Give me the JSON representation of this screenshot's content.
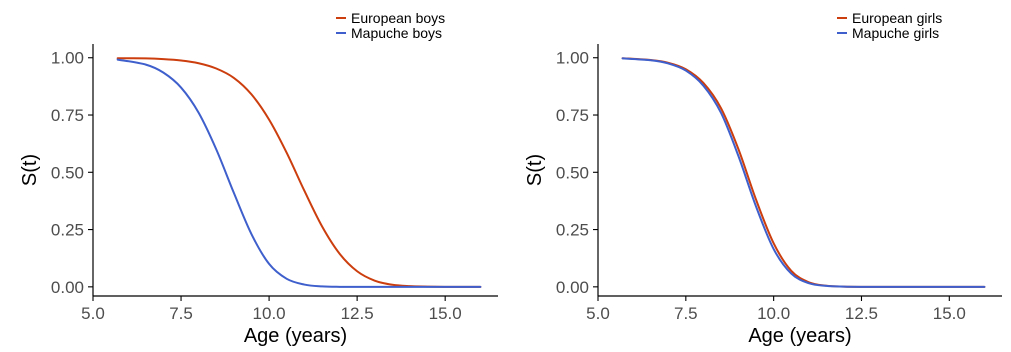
{
  "colors": {
    "european": "#cc3e0e",
    "mapuche": "#3e5fcc",
    "axis": "#000000",
    "tick_text": "#4d4d4d"
  },
  "chart_data": [
    {
      "type": "line",
      "title": "",
      "xlabel": "Age (years)",
      "ylabel": "S(t)",
      "xlim": [
        5.0,
        16.5
      ],
      "ylim": [
        -0.04,
        1.06
      ],
      "x_ticks": [
        5.0,
        7.5,
        10.0,
        12.5,
        15.0
      ],
      "x_tick_labels": [
        "5.0",
        "7.5",
        "10.0",
        "12.5",
        "15.0"
      ],
      "y_ticks": [
        0.0,
        0.25,
        0.5,
        0.75,
        1.0
      ],
      "y_tick_labels": [
        "0.00",
        "0.25",
        "0.50",
        "0.75",
        "1.00"
      ],
      "grid": false,
      "legend_position": "top-right",
      "series": [
        {
          "name": "European boys",
          "color": "#cc3e0e",
          "x": [
            5.7,
            6.5,
            7.0,
            7.5,
            8.0,
            8.5,
            9.0,
            9.5,
            10.0,
            10.5,
            11.0,
            11.5,
            12.0,
            12.5,
            13.0,
            13.5,
            14.0,
            14.5,
            15.0,
            15.5,
            16.0
          ],
          "y": [
            0.998,
            0.997,
            0.994,
            0.988,
            0.976,
            0.953,
            0.912,
            0.84,
            0.73,
            0.585,
            0.42,
            0.265,
            0.145,
            0.068,
            0.027,
            0.009,
            0.003,
            0.001,
            0.0,
            0.0,
            0.0
          ]
        },
        {
          "name": "Mapuche boys",
          "color": "#3e5fcc",
          "x": [
            5.7,
            6.5,
            7.0,
            7.5,
            8.0,
            8.5,
            9.0,
            9.5,
            10.0,
            10.5,
            11.0,
            11.5,
            12.0,
            12.5,
            13.0,
            13.5,
            14.0,
            14.5,
            15.0,
            15.5,
            16.0
          ],
          "y": [
            0.992,
            0.97,
            0.935,
            0.87,
            0.76,
            0.6,
            0.41,
            0.23,
            0.1,
            0.035,
            0.01,
            0.002,
            0.0,
            0.0,
            0.0,
            0.0,
            0.0,
            0.0,
            0.0,
            0.0,
            0.0
          ]
        }
      ]
    },
    {
      "type": "line",
      "title": "",
      "xlabel": "Age (years)",
      "ylabel": "S(t)",
      "xlim": [
        5.0,
        16.5
      ],
      "ylim": [
        -0.04,
        1.06
      ],
      "x_ticks": [
        5.0,
        7.5,
        10.0,
        12.5,
        15.0
      ],
      "x_tick_labels": [
        "5.0",
        "7.5",
        "10.0",
        "12.5",
        "15.0"
      ],
      "y_ticks": [
        0.0,
        0.25,
        0.5,
        0.75,
        1.0
      ],
      "y_tick_labels": [
        "0.00",
        "0.25",
        "0.50",
        "0.75",
        "1.00"
      ],
      "grid": false,
      "legend_position": "top-right",
      "series": [
        {
          "name": "European girls",
          "color": "#cc3e0e",
          "x": [
            5.7,
            6.5,
            7.0,
            7.5,
            8.0,
            8.5,
            9.0,
            9.5,
            10.0,
            10.5,
            11.0,
            11.5,
            12.0,
            12.5,
            13.0,
            13.5,
            14.0,
            14.5,
            15.0,
            15.5,
            16.0
          ],
          "y": [
            0.998,
            0.99,
            0.978,
            0.95,
            0.89,
            0.78,
            0.6,
            0.38,
            0.19,
            0.07,
            0.02,
            0.005,
            0.001,
            0.0,
            0.0,
            0.0,
            0.0,
            0.0,
            0.0,
            0.0,
            0.0
          ]
        },
        {
          "name": "Mapuche girls",
          "color": "#3e5fcc",
          "x": [
            5.7,
            6.5,
            7.0,
            7.5,
            8.0,
            8.5,
            9.0,
            9.5,
            10.0,
            10.5,
            11.0,
            11.5,
            12.0,
            12.5,
            13.0,
            13.5,
            14.0,
            14.5,
            15.0,
            15.5,
            16.0
          ],
          "y": [
            0.997,
            0.989,
            0.975,
            0.944,
            0.878,
            0.76,
            0.57,
            0.35,
            0.165,
            0.058,
            0.016,
            0.004,
            0.001,
            0.0,
            0.0,
            0.0,
            0.0,
            0.0,
            0.0,
            0.0,
            0.0
          ]
        }
      ]
    }
  ]
}
